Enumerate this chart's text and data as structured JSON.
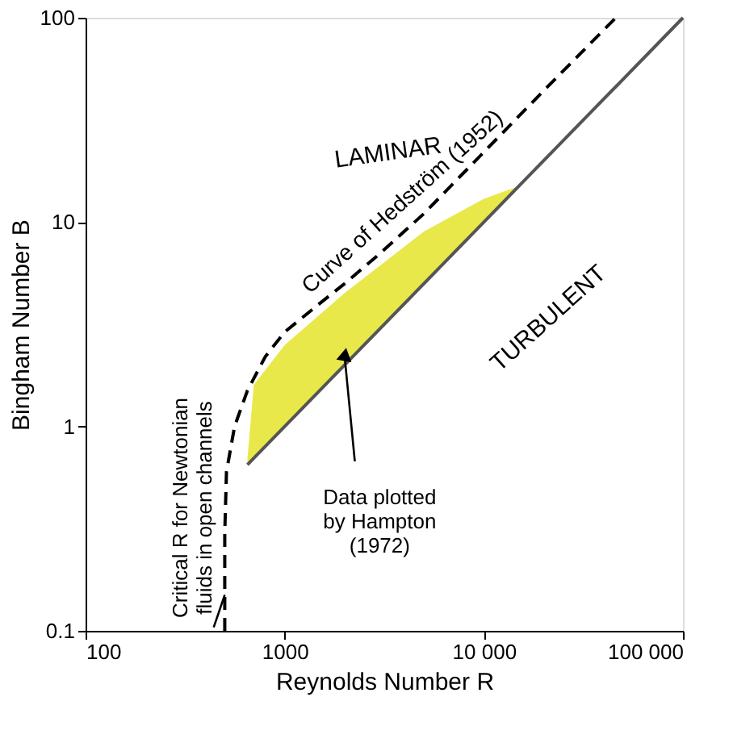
{
  "chart_data": {
    "type": "line",
    "xlabel": "Reynolds Number R",
    "ylabel": "Bingham Number B",
    "xlim": [
      100,
      100000
    ],
    "ylim": [
      0.1,
      100
    ],
    "xticks": [
      100,
      1000,
      {
        "value": 10000,
        "label": "10 000"
      },
      {
        "value": 100000,
        "label": "100 000"
      }
    ],
    "yticks": [
      0.1,
      1,
      10,
      100
    ],
    "log": "xy",
    "grid": false,
    "series": [
      {
        "color": "#555555",
        "line_style": "solid",
        "x": [
          650,
          700,
          1000,
          2000,
          5000,
          10000,
          15000,
          100000
        ],
        "values": [
          0.65,
          0.7,
          1,
          2,
          5,
          10,
          15,
          100
        ],
        "lower": [
          0.65,
          0.7,
          1,
          2,
          5,
          10,
          15,
          null
        ],
        "upper": [
          0.7,
          1.6,
          2.5,
          4.5,
          9,
          13,
          15,
          null
        ]
      },
      {
        "color": "#000000",
        "line_style": "dashed",
        "x": [
          500,
          500,
          510,
          560,
          650,
          800,
          1000,
          1500,
          2000,
          3000,
          5000,
          10000,
          20000,
          46000
        ],
        "values": [
          0.1,
          0.3,
          0.6,
          1,
          1.5,
          2.2,
          2.9,
          4,
          5,
          7,
          11,
          22,
          44,
          100
        ]
      }
    ],
    "annotations": [
      "LAMINAR",
      "TURBULENT",
      {
        "text": "Curve of Hedström (1952)",
        "x": 5000,
        "y": 11
      },
      {
        "text": "Critical R for Newtonian\nfluids in open channels",
        "x": 500,
        "y": 0.15
      },
      {
        "text": "Data plotted\nby Hampton\n(1972)",
        "x": 2000,
        "y": 2.2
      }
    ]
  }
}
